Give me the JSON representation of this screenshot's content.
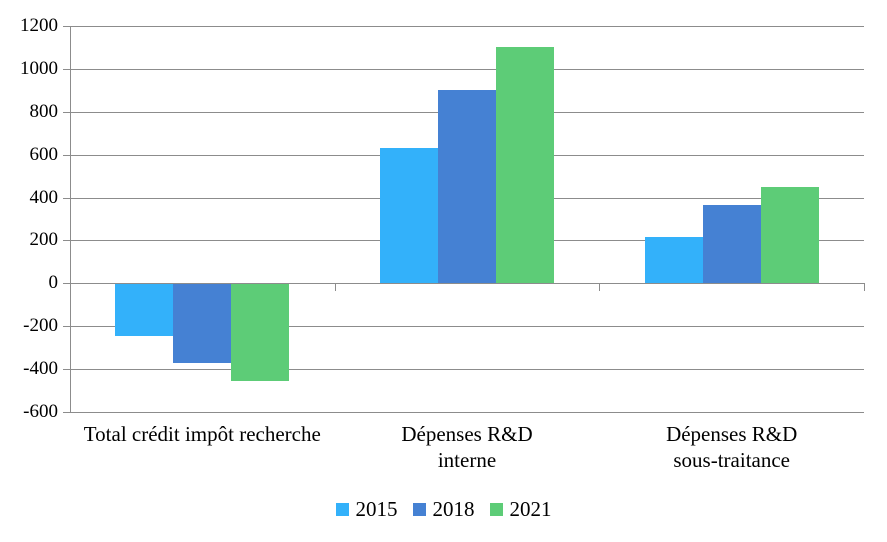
{
  "chart_data": {
    "type": "bar",
    "title": "",
    "categories": [
      "Total crédit impôt recherche",
      "Dépenses R&D interne",
      "Dépenses R&D sous-traitance"
    ],
    "category_label_lines": [
      [
        "Total crédit impôt recherche"
      ],
      [
        "Dépenses R&D",
        "interne"
      ],
      [
        "Dépenses R&D",
        "sous-traitance"
      ]
    ],
    "series": [
      {
        "name": "2015",
        "color": "#33B1FA",
        "values": [
          -240,
          630,
          215
        ]
      },
      {
        "name": "2018",
        "color": "#4581D3",
        "values": [
          -367,
          900,
          365
        ]
      },
      {
        "name": "2021",
        "color": "#5DCC77",
        "values": [
          -449,
          1100,
          450
        ]
      }
    ],
    "ylim": [
      -600,
      1200
    ],
    "ytick_step": 200,
    "ytick_labels": [
      "1200",
      "1000",
      "800",
      "600",
      "400",
      "200",
      "0",
      "-200",
      "-400",
      "-600"
    ],
    "grid": true,
    "xlabel": "",
    "ylabel": "",
    "legend_position": "bottom"
  },
  "colors": {
    "background": "#FFFFFF",
    "gridline": "#8C8C8C",
    "axis_line": "#8C8C8C",
    "text": "#000000"
  }
}
